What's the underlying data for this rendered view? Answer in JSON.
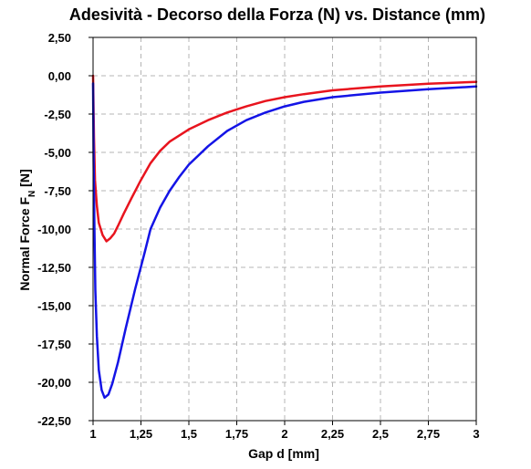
{
  "chart_data": {
    "type": "line",
    "title": "Adesività - Decorso della Forza (N) vs. Distance (mm)",
    "xlabel": "Gap d [mm]",
    "ylabel_main": "Normal Force F",
    "ylabel_sub": "N",
    "ylabel_suffix": " [N]",
    "xlim": [
      1,
      3
    ],
    "ylim": [
      -22.5,
      2.5
    ],
    "x_ticks": [
      1,
      1.25,
      1.5,
      1.75,
      2,
      2.25,
      2.5,
      2.75,
      3
    ],
    "x_tick_labels": [
      "1",
      "1,25",
      "1,5",
      "1,75",
      "2",
      "2,25",
      "2,5",
      "2,75",
      "3"
    ],
    "y_ticks": [
      2.5,
      0,
      -2.5,
      -5,
      -7.5,
      -10,
      -12.5,
      -15,
      -17.5,
      -20,
      -22.5
    ],
    "y_tick_labels": [
      "2,50",
      "0,00",
      "-2,50",
      "-5,00",
      "-7,50",
      "-10,00",
      "-12,50",
      "-15,00",
      "-17,50",
      "-20,00",
      "-22,50"
    ],
    "grid": true,
    "series": [
      {
        "color": "#e8141e",
        "points": [
          [
            1.0,
            0.0
          ],
          [
            1.005,
            -4.0
          ],
          [
            1.01,
            -6.8
          ],
          [
            1.02,
            -8.5
          ],
          [
            1.03,
            -9.6
          ],
          [
            1.05,
            -10.4
          ],
          [
            1.07,
            -10.8
          ],
          [
            1.09,
            -10.6
          ],
          [
            1.11,
            -10.3
          ],
          [
            1.13,
            -9.8
          ],
          [
            1.16,
            -9.0
          ],
          [
            1.2,
            -8.0
          ],
          [
            1.25,
            -6.8
          ],
          [
            1.3,
            -5.7
          ],
          [
            1.35,
            -4.9
          ],
          [
            1.4,
            -4.3
          ],
          [
            1.5,
            -3.5
          ],
          [
            1.6,
            -2.9
          ],
          [
            1.7,
            -2.4
          ],
          [
            1.8,
            -2.0
          ],
          [
            1.9,
            -1.65
          ],
          [
            2.0,
            -1.4
          ],
          [
            2.1,
            -1.2
          ],
          [
            2.25,
            -0.95
          ],
          [
            2.5,
            -0.7
          ],
          [
            2.75,
            -0.52
          ],
          [
            3.0,
            -0.4
          ]
        ]
      },
      {
        "color": "#1414e6",
        "points": [
          [
            1.0,
            -0.5
          ],
          [
            1.003,
            -5.5
          ],
          [
            1.007,
            -10.0
          ],
          [
            1.012,
            -14.0
          ],
          [
            1.02,
            -17.0
          ],
          [
            1.03,
            -19.2
          ],
          [
            1.045,
            -20.5
          ],
          [
            1.06,
            -21.0
          ],
          [
            1.08,
            -20.8
          ],
          [
            1.1,
            -20.1
          ],
          [
            1.13,
            -18.7
          ],
          [
            1.17,
            -16.5
          ],
          [
            1.22,
            -13.9
          ],
          [
            1.27,
            -11.5
          ],
          [
            1.3,
            -10.0
          ],
          [
            1.35,
            -8.6
          ],
          [
            1.4,
            -7.5
          ],
          [
            1.45,
            -6.6
          ],
          [
            1.5,
            -5.8
          ],
          [
            1.6,
            -4.6
          ],
          [
            1.7,
            -3.6
          ],
          [
            1.8,
            -2.9
          ],
          [
            1.9,
            -2.4
          ],
          [
            2.0,
            -2.0
          ],
          [
            2.1,
            -1.7
          ],
          [
            2.25,
            -1.4
          ],
          [
            2.5,
            -1.1
          ],
          [
            2.75,
            -0.88
          ],
          [
            3.0,
            -0.7
          ]
        ]
      }
    ]
  }
}
